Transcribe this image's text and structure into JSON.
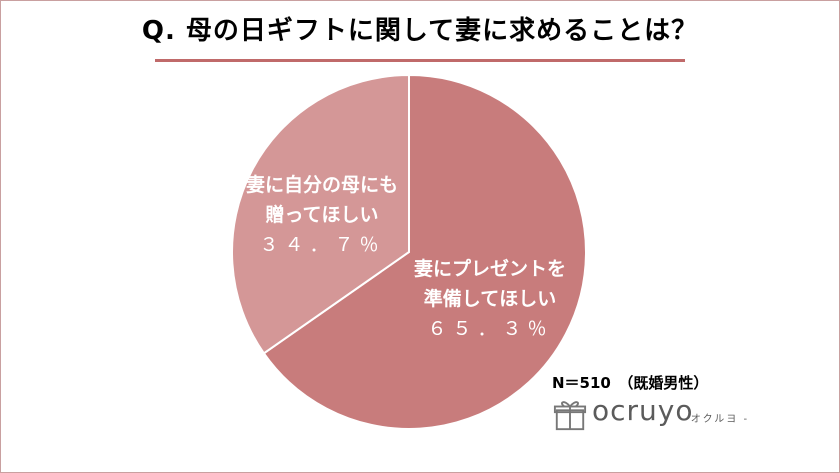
{
  "chart_data": {
    "type": "pie",
    "title": "Q. 母の日ギフトに関して妻に求めることは？",
    "slices": [
      {
        "label_line1": "妻にプレゼントを",
        "label_line2": "準備してほしい",
        "value": 65.3,
        "value_label": "６５．３％",
        "color": "#c87c7c"
      },
      {
        "label_line1": "妻に自分の母にも",
        "label_line2": "贈ってほしい",
        "value": 34.7,
        "value_label": "３４．７％",
        "color": "#d49797"
      }
    ],
    "start_angle_deg": 0,
    "direction": "clockwise"
  },
  "note": "N＝510　（既婚男性）",
  "brand": {
    "name": "ocruyo",
    "sub": "- オクルヨ -"
  },
  "colors": {
    "rule": "#c06a6a",
    "slice_stroke": "#ffffff"
  }
}
